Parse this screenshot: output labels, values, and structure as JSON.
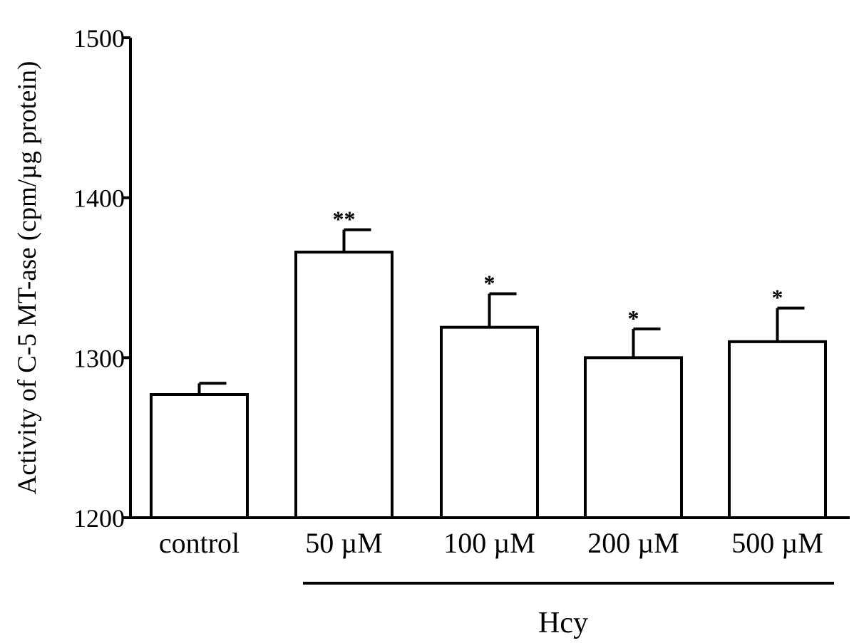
{
  "chart_data": {
    "type": "bar",
    "title": "",
    "ylabel": "Activity of C-5 MT-ase (cpm/µg protein)",
    "xlabel": "",
    "group_label": "Hcy",
    "categories": [
      "control",
      "50 µM",
      "100 µM",
      "200 µM",
      "500 µM"
    ],
    "values": [
      1277,
      1366,
      1319,
      1300,
      1310
    ],
    "error_upper": [
      1284,
      1380,
      1340,
      1318,
      1331
    ],
    "significance": [
      "",
      "**",
      "*",
      "*",
      "*"
    ],
    "ylim": [
      1200,
      1500
    ],
    "yticks": [
      1200,
      1300,
      1400,
      1500
    ],
    "ytick_labels": [
      "1200",
      "1300",
      "1400",
      "1500"
    ],
    "grid": false,
    "bar_fill": "#ffffff",
    "bar_stroke": "#000000"
  }
}
